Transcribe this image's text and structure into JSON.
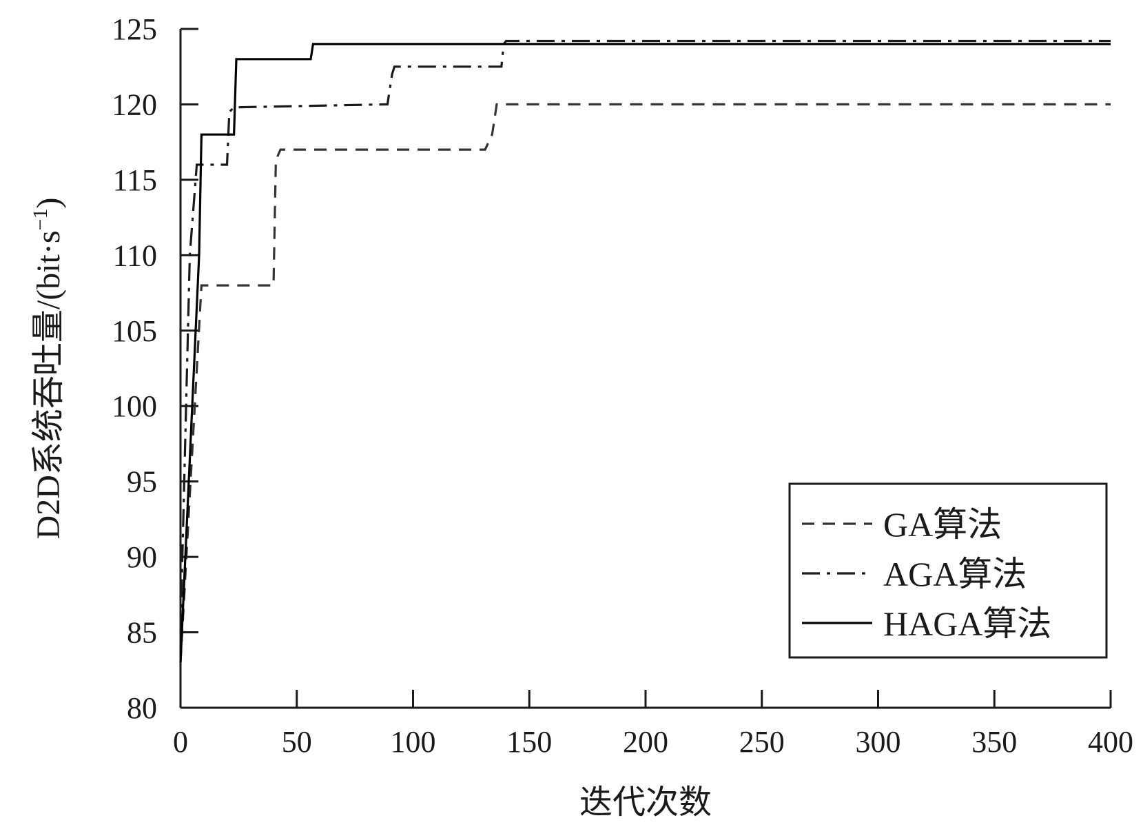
{
  "chart_data": {
    "type": "line",
    "xlabel": "迭代次数",
    "ylabel_main": "D2D系统吞吐量/(bit·s",
    "ylabel_sup": "−1",
    "ylabel_close": ")",
    "xlim": [
      0,
      400
    ],
    "ylim": [
      80,
      125
    ],
    "xticks": [
      0,
      50,
      100,
      150,
      200,
      250,
      300,
      350,
      400
    ],
    "yticks": [
      80,
      85,
      90,
      95,
      100,
      105,
      110,
      115,
      120,
      125
    ],
    "xtick_labels": [
      "0",
      "50",
      "100",
      "150",
      "200",
      "250",
      "300",
      "350",
      "400"
    ],
    "ytick_labels": [
      "80",
      "85",
      "90",
      "95",
      "100",
      "105",
      "110",
      "115",
      "120",
      "125"
    ],
    "grid": false,
    "legend_position": "bottom-right",
    "series": [
      {
        "name": "GA算法",
        "style": "dashed",
        "color": "#333333",
        "x": [
          0,
          9,
          40,
          41,
          43,
          131,
          134,
          136,
          400
        ],
        "y": [
          83,
          108,
          108,
          116.3,
          117,
          117,
          118,
          120,
          120
        ]
      },
      {
        "name": "AGA算法",
        "style": "dashdot",
        "color": "#1a1a1a",
        "x": [
          0,
          4,
          7,
          20,
          21,
          23,
          89,
          91,
          92,
          138,
          139,
          140,
          400
        ],
        "y": [
          85,
          110,
          116,
          116,
          119.5,
          119.8,
          120,
          122,
          122.5,
          122.5,
          124,
          124.2,
          124.2
        ]
      },
      {
        "name": "HAGA算法",
        "style": "solid",
        "color": "#000000",
        "x": [
          0,
          8,
          9,
          23,
          24,
          56,
          57,
          400
        ],
        "y": [
          83,
          110,
          118,
          118,
          123,
          123,
          124,
          124
        ]
      }
    ]
  }
}
